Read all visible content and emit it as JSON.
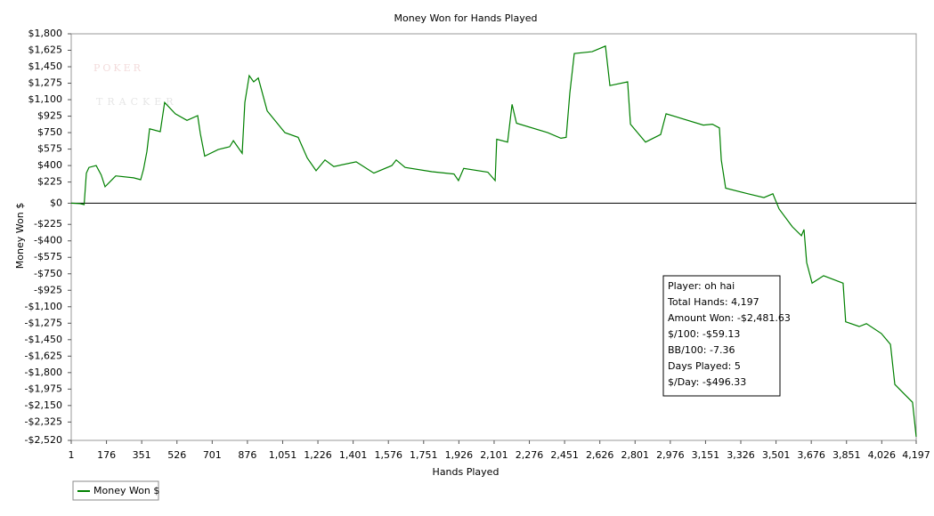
{
  "chart_data": {
    "type": "line",
    "title": "Money Won for Hands Played",
    "xlabel": "Hands Played",
    "ylabel": "Money Won $",
    "watermark": [
      "POKER",
      "TRACKER"
    ],
    "xlim": [
      1,
      4197
    ],
    "ylim": [
      -2520,
      1800
    ],
    "xticks": [
      1,
      176,
      351,
      526,
      701,
      876,
      {
        "value": 1051,
        "label": "1,051"
      },
      {
        "value": 1226,
        "label": "1,226"
      },
      {
        "value": 1401,
        "label": "1,401"
      },
      {
        "value": 1576,
        "label": "1,576"
      },
      {
        "value": 1751,
        "label": "1,751"
      },
      {
        "value": 1926,
        "label": "1,926"
      },
      {
        "value": 2101,
        "label": "2,101"
      },
      {
        "value": 2276,
        "label": "2,276"
      },
      {
        "value": 2451,
        "label": "2,451"
      },
      {
        "value": 2626,
        "label": "2,626"
      },
      {
        "value": 2801,
        "label": "2,801"
      },
      {
        "value": 2976,
        "label": "2,976"
      },
      {
        "value": 3151,
        "label": "3,151"
      },
      {
        "value": 3326,
        "label": "3,326"
      },
      {
        "value": 3501,
        "label": "3,501"
      },
      {
        "value": 3676,
        "label": "3,676"
      },
      {
        "value": 3851,
        "label": "3,851"
      },
      {
        "value": 4026,
        "label": "4,026"
      },
      {
        "value": 4197,
        "label": "4,197"
      }
    ],
    "yticks": [
      {
        "value": 1800,
        "label": "$1,800"
      },
      {
        "value": 1625,
        "label": "$1,625"
      },
      {
        "value": 1450,
        "label": "$1,450"
      },
      {
        "value": 1275,
        "label": "$1,275"
      },
      {
        "value": 1100,
        "label": "$1,100"
      },
      {
        "value": 925,
        "label": "$925"
      },
      {
        "value": 750,
        "label": "$750"
      },
      {
        "value": 575,
        "label": "$575"
      },
      {
        "value": 400,
        "label": "$400"
      },
      {
        "value": 225,
        "label": "$225"
      },
      {
        "value": 0,
        "label": "$0"
      },
      {
        "value": -225,
        "label": "-$225"
      },
      {
        "value": -400,
        "label": "-$400"
      },
      {
        "value": -575,
        "label": "-$575"
      },
      {
        "value": -750,
        "label": "-$750"
      },
      {
        "value": -925,
        "label": "-$925"
      },
      {
        "value": -1100,
        "label": "-$1,100"
      },
      {
        "value": -1275,
        "label": "-$1,275"
      },
      {
        "value": -1450,
        "label": "-$1,450"
      },
      {
        "value": -1625,
        "label": "-$1,625"
      },
      {
        "value": -1800,
        "label": "-$1,800"
      },
      {
        "value": -1975,
        "label": "-$1,975"
      },
      {
        "value": -2150,
        "label": "-$2,150"
      },
      {
        "value": -2325,
        "label": "-$2,325"
      },
      {
        "value": -2520,
        "label": "-$2,520"
      }
    ],
    "x": [
      1,
      45,
      65,
      76,
      89,
      125,
      150,
      169,
      222,
      311,
      346,
      360,
      377,
      390,
      443,
      465,
      518,
      576,
      629,
      642,
      664,
      731,
      788,
      806,
      850,
      863,
      885,
      907,
      930,
      974,
      1062,
      1128,
      1173,
      1217,
      1261,
      1305,
      1416,
      1504,
      1593,
      1615,
      1659,
      1792,
      1902,
      1924,
      1950,
      2070,
      2106,
      2114,
      2168,
      2190,
      2212,
      2367,
      2433,
      2459,
      2477,
      2499,
      2588,
      2654,
      2676,
      2764,
      2778,
      2853,
      2928,
      2955,
      3140,
      3185,
      3220,
      3229,
      3251,
      3362,
      3441,
      3485,
      3516,
      3582,
      3627,
      3640,
      3653,
      3680,
      3737,
      3834,
      3847,
      3914,
      3950,
      4024,
      4069,
      4091,
      4179,
      4197
    ],
    "series": [
      {
        "name": "Money Won $",
        "color": "#008000",
        "values": [
          0,
          -5,
          -15,
          320,
          380,
          400,
          300,
          175,
          290,
          270,
          250,
          360,
          550,
          790,
          760,
          1070,
          950,
          880,
          930,
          740,
          500,
          570,
          600,
          665,
          530,
          1070,
          1356,
          1290,
          1330,
          980,
          750,
          700,
          480,
          345,
          460,
          390,
          440,
          320,
          400,
          460,
          380,
          335,
          310,
          240,
          370,
          330,
          240,
          680,
          650,
          1050,
          850,
          750,
          690,
          700,
          1170,
          1590,
          1610,
          1670,
          1250,
          1290,
          840,
          650,
          730,
          950,
          830,
          840,
          800,
          460,
          160,
          100,
          60,
          100,
          -60,
          -250,
          -345,
          -280,
          -630,
          -850,
          -770,
          -850,
          -1260,
          -1310,
          -1280,
          -1385,
          -1500,
          -1925,
          -2115,
          -2481.63
        ]
      }
    ],
    "zero_line": true,
    "legend": "bottom-left",
    "annotations": [
      "Player: oh hai",
      "Total Hands: 4,197",
      "Amount Won: -$2,481.63",
      "$/100: -$59.13",
      "BB/100: -7.36",
      "Days Played: 5",
      "$/Day: -$496.33"
    ]
  }
}
